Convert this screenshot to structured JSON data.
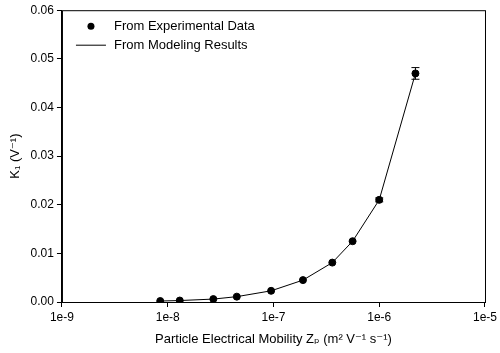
{
  "chart_data": {
    "type": "scatter",
    "x_label": "Particle Electrical Mobility Zₚ (m² V⁻¹ s⁻¹)",
    "y_label": "K₁ (V⁻¹)",
    "log": "x",
    "grid": false,
    "legend": "upper left",
    "xlim": [
      1e-09,
      1e-05
    ],
    "xticks": [
      {
        "value": 1e-09,
        "label": "1e-9"
      },
      {
        "value": 1e-08,
        "label": "1e-8"
      },
      {
        "value": 1e-07,
        "label": "1e-7"
      },
      {
        "value": 1e-06,
        "label": "1e-6"
      },
      {
        "value": 1e-05,
        "label": "1e-5"
      }
    ],
    "ylim": [
      0,
      0.06
    ],
    "yticks": [
      {
        "value": 0,
        "label": "0.00"
      },
      {
        "value": 0.01,
        "label": "0.01"
      },
      {
        "value": 0.02,
        "label": "0.02"
      },
      {
        "value": 0.03,
        "label": "0.03"
      },
      {
        "value": 0.04,
        "label": "0.04"
      },
      {
        "value": 0.05,
        "label": "0.05"
      },
      {
        "value": 0.06,
        "label": "0.06"
      }
    ],
    "x": [
      8.5e-09,
      1.3e-08,
      2.7e-08,
      4.5e-08,
      9.5e-08,
      1.9e-07,
      3.6e-07,
      5.6e-07,
      1e-06,
      2.2e-06
    ],
    "series": [
      {
        "name": "From Experimental Data",
        "type": "scatter",
        "marker": "circle",
        "color": "#000000",
        "values": [
          0.0002,
          0.0003,
          0.0006,
          0.0011,
          0.0023,
          0.0045,
          0.0081,
          0.0125,
          0.021,
          0.047
        ],
        "errors": [
          0,
          0,
          0,
          0,
          0,
          0,
          0,
          0,
          0.0004,
          0.0012
        ]
      },
      {
        "name": "From Modeling Results",
        "type": "line",
        "line_style": "solid",
        "color": "#000000",
        "values": [
          0.0002,
          0.0003,
          0.0006,
          0.0011,
          0.0023,
          0.0045,
          0.0081,
          0.0125,
          0.021,
          0.047
        ]
      }
    ]
  }
}
